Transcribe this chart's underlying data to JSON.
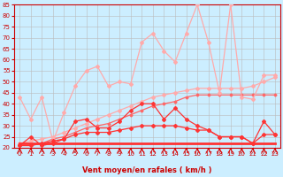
{
  "x": [
    0,
    1,
    2,
    3,
    4,
    5,
    6,
    7,
    8,
    9,
    10,
    11,
    12,
    13,
    14,
    15,
    16,
    17,
    18,
    19,
    20,
    21,
    22,
    23
  ],
  "series_flat": [
    22,
    22,
    22,
    22,
    22,
    22,
    22,
    22,
    22,
    22,
    22,
    22,
    22,
    22,
    22,
    22,
    22,
    22,
    22,
    22,
    22,
    22,
    22,
    22
  ],
  "series_rise_slow": [
    22,
    23,
    24,
    25,
    27,
    29,
    31,
    33,
    35,
    37,
    39,
    41,
    43,
    44,
    45,
    46,
    47,
    47,
    47,
    47,
    47,
    48,
    50,
    52
  ],
  "series_rise_fast": [
    43,
    33,
    43,
    23,
    36,
    48,
    55,
    57,
    48,
    50,
    49,
    68,
    72,
    64,
    59,
    72,
    85,
    68,
    45,
    85,
    43,
    42,
    53,
    53
  ],
  "series_red1": [
    21,
    21,
    22,
    24,
    25,
    27,
    29,
    30,
    31,
    33,
    35,
    37,
    39,
    40,
    41,
    43,
    44,
    44,
    44,
    44,
    44,
    44,
    44,
    44
  ],
  "series_red2": [
    21,
    21,
    22,
    23,
    24,
    32,
    33,
    29,
    29,
    32,
    37,
    40,
    40,
    33,
    38,
    33,
    30,
    28,
    25,
    25,
    25,
    22,
    32,
    26
  ],
  "series_red3": [
    21,
    25,
    21,
    22,
    24,
    26,
    27,
    27,
    27,
    28,
    29,
    30,
    30,
    30,
    30,
    29,
    28,
    28,
    25,
    25,
    25,
    22,
    26,
    26
  ],
  "bg_color": "#cceeff",
  "grid_color": "#bbbbbb",
  "color_light": "#ffaaaa",
  "color_dark": "#ff3333",
  "color_flat": "#ff6666",
  "xlabel": "Vent moyen/en rafales ( km/h )",
  "ylim": [
    20,
    85
  ],
  "yticks": [
    20,
    25,
    30,
    35,
    40,
    45,
    50,
    55,
    60,
    65,
    70,
    75,
    80,
    85
  ]
}
